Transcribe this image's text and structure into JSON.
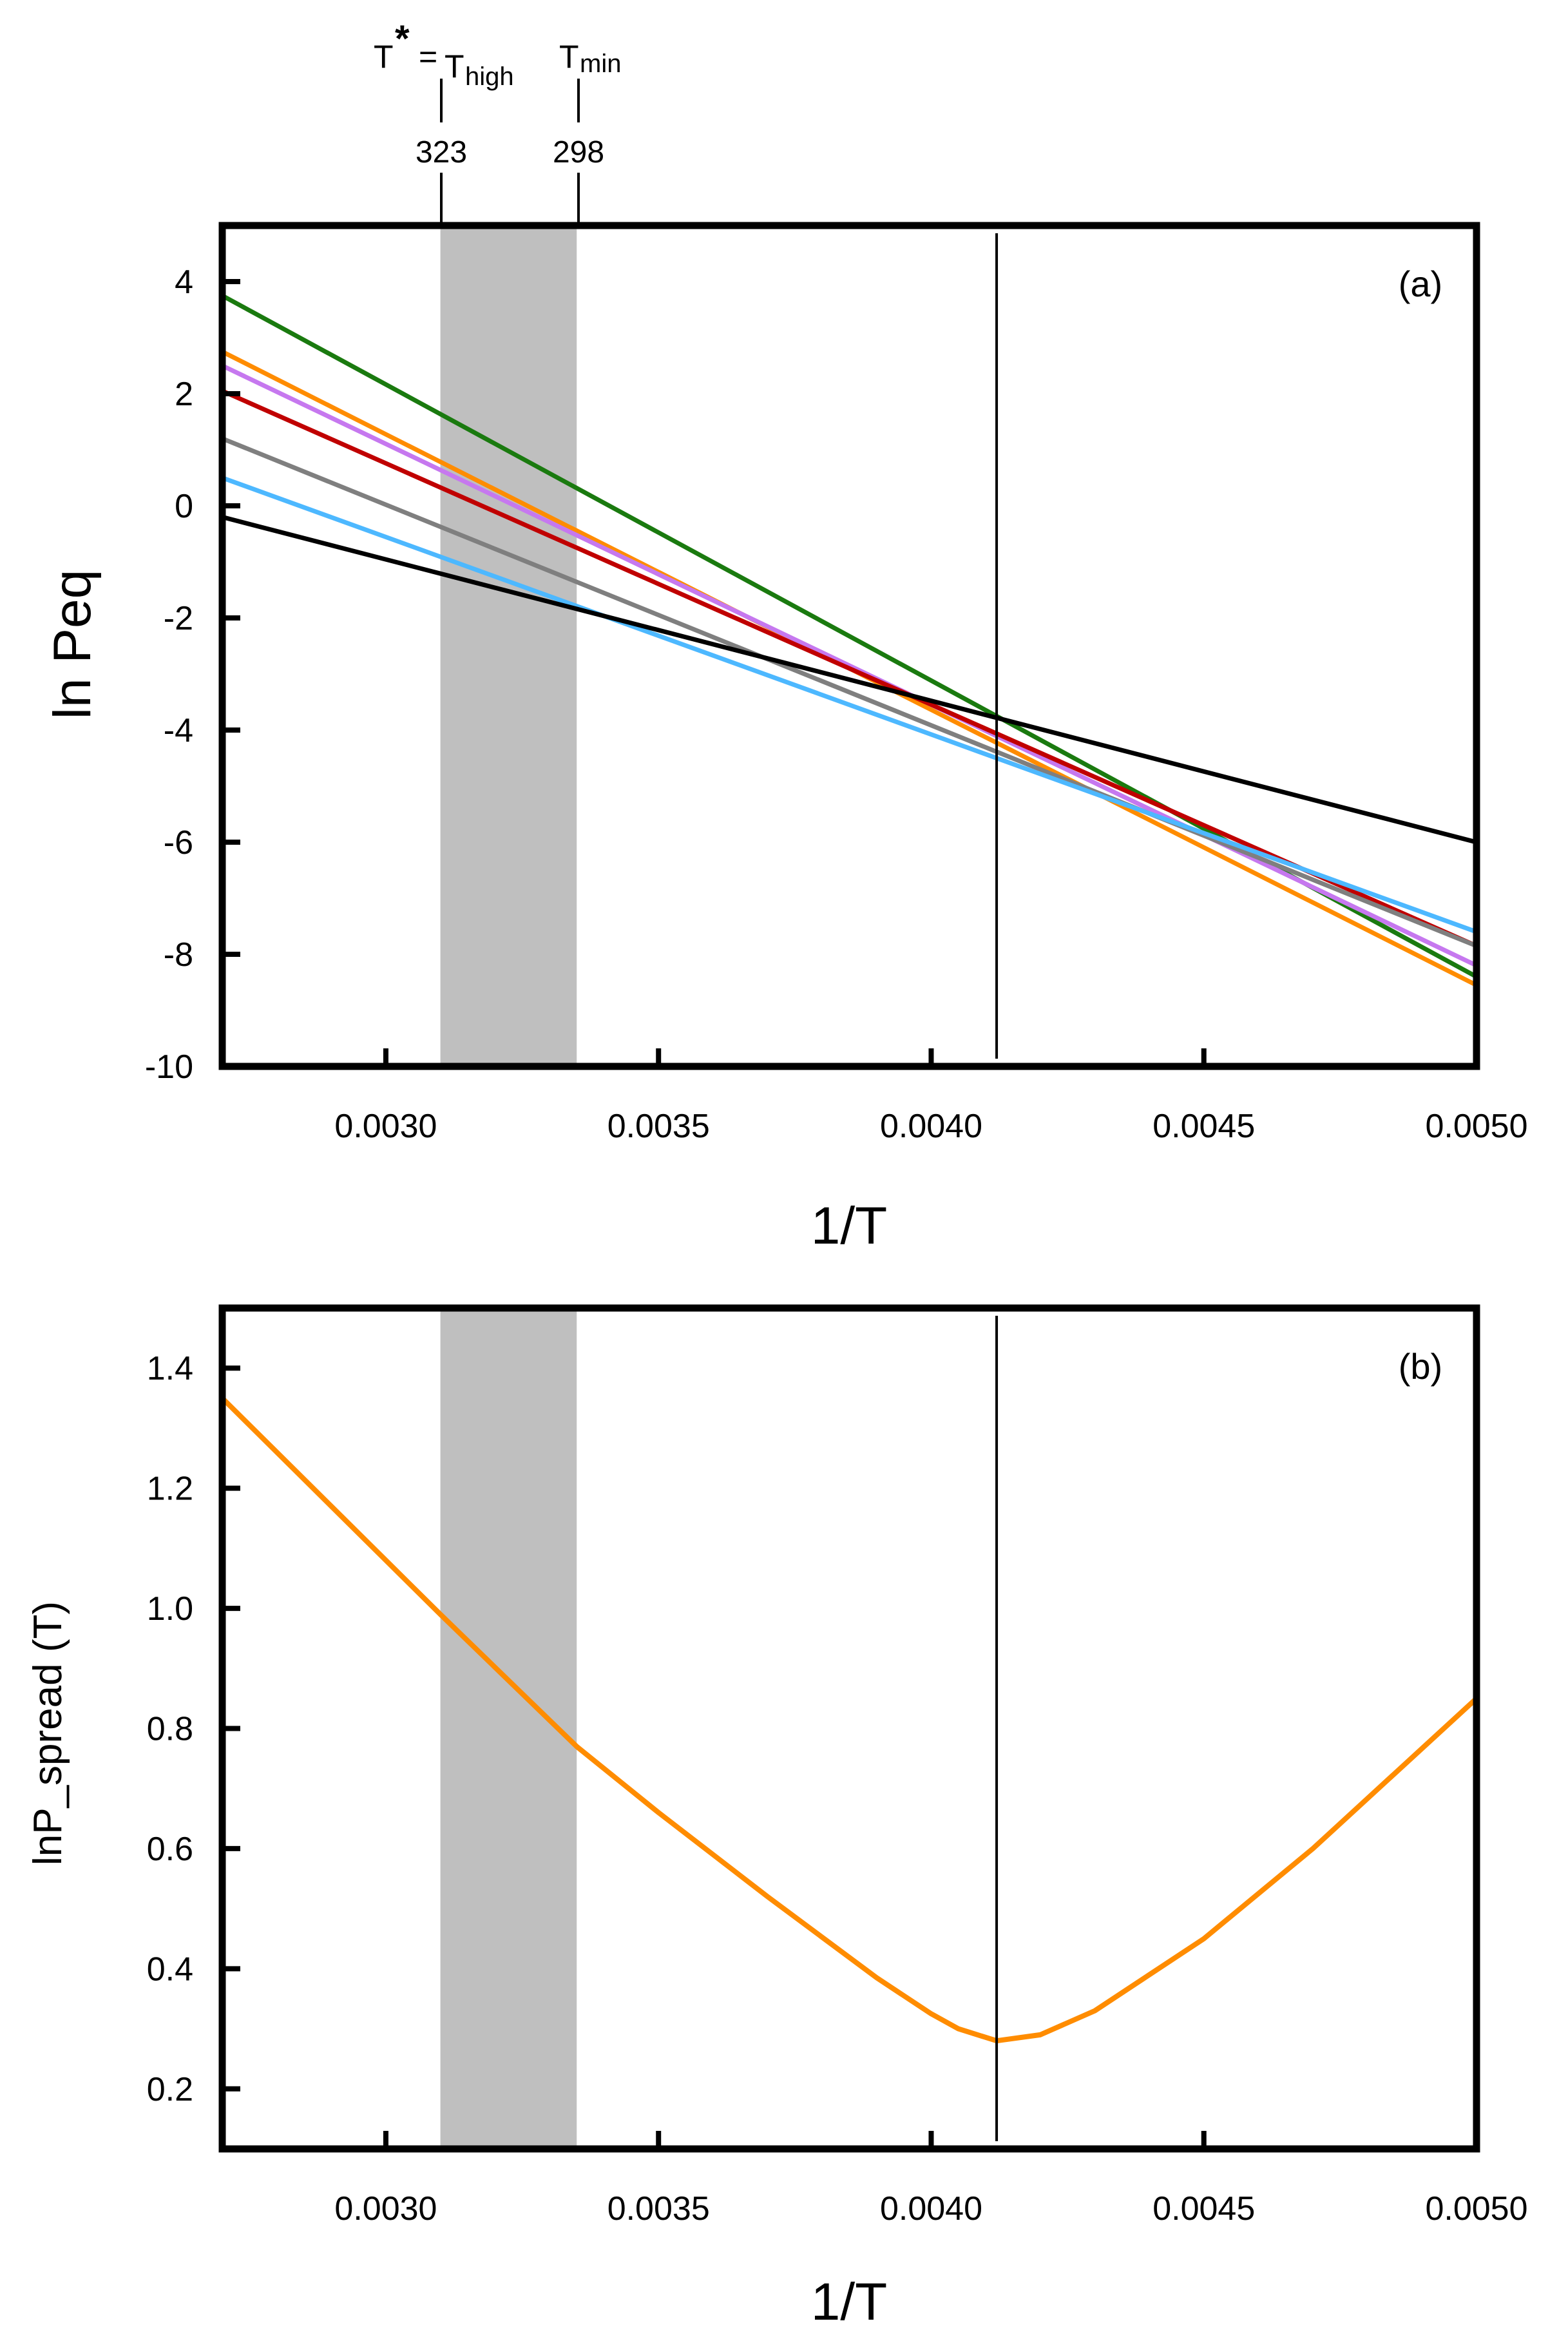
{
  "figure": {
    "annotation": {
      "t_star": "T",
      "star": "*",
      "equals": "=",
      "t_high": "T",
      "high_sub": "high",
      "t_min": "T",
      "min_sub": "min",
      "value_high": "323",
      "value_min": "298"
    },
    "shade_colors": {
      "band": "#bfbfbf"
    }
  },
  "chart_data": [
    {
      "type": "line",
      "panel_tag": "(a)",
      "title": "",
      "xlabel": "1/T",
      "ylabel": "ln Peq",
      "xlim": [
        0.0027,
        0.005
      ],
      "ylim": [
        -10,
        5
      ],
      "x_ticks": [
        0.003,
        0.0035,
        0.004,
        0.0045,
        0.005
      ],
      "x_tick_labels": [
        "0.0030",
        "0.0035",
        "0.0040",
        "0.0045",
        "0.0050"
      ],
      "y_ticks": [
        4,
        2,
        0,
        -2,
        -4,
        -6,
        -8,
        -10
      ],
      "y_tick_labels": [
        "4",
        "2",
        "0",
        "-2",
        "-4",
        "-6",
        "-8",
        "-10"
      ],
      "shaded_band": {
        "x_from": 0.0031,
        "x_to": 0.00335,
        "color": "#bfbfbf"
      },
      "vline_x": 0.00412,
      "series": [
        {
          "name": "green",
          "color": "#1a7a0f",
          "x": [
            0.0027,
            0.005
          ],
          "y": [
            3.75,
            -8.4
          ]
        },
        {
          "name": "orange",
          "color": "#ff8c00",
          "x": [
            0.0027,
            0.005
          ],
          "y": [
            2.75,
            -8.55
          ]
        },
        {
          "name": "purple",
          "color": "#c678ef",
          "x": [
            0.0027,
            0.005
          ],
          "y": [
            2.5,
            -8.2
          ]
        },
        {
          "name": "red",
          "color": "#c00000",
          "x": [
            0.0027,
            0.005
          ],
          "y": [
            2.05,
            -7.85
          ]
        },
        {
          "name": "gray",
          "color": "#7f7f7f",
          "x": [
            0.0027,
            0.005
          ],
          "y": [
            1.2,
            -7.85
          ]
        },
        {
          "name": "blue",
          "color": "#4db8ff",
          "x": [
            0.0027,
            0.005
          ],
          "y": [
            0.5,
            -7.6
          ]
        },
        {
          "name": "black",
          "color": "#000000",
          "x": [
            0.0027,
            0.005
          ],
          "y": [
            -0.2,
            -6.0
          ]
        }
      ]
    },
    {
      "type": "line",
      "panel_tag": "(b)",
      "title": "",
      "xlabel": "1/T",
      "ylabel": "lnP_spread (T)",
      "xlim": [
        0.0027,
        0.005
      ],
      "ylim": [
        0.1,
        1.5
      ],
      "x_ticks": [
        0.003,
        0.0035,
        0.004,
        0.0045,
        0.005
      ],
      "x_tick_labels": [
        "0.0030",
        "0.0035",
        "0.0040",
        "0.0045",
        "0.0050"
      ],
      "y_ticks": [
        1.4,
        1.2,
        1.0,
        0.8,
        0.6,
        0.4,
        0.2
      ],
      "y_tick_labels": [
        "1.4",
        "1.2",
        "1.0",
        "0.8",
        "0.6",
        "0.4",
        "0.2"
      ],
      "shaded_band": {
        "x_from": 0.0031,
        "x_to": 0.00335,
        "color": "#bfbfbf"
      },
      "vline_x": 0.00412,
      "series": [
        {
          "name": "lnP_spread",
          "color": "#ff8c00",
          "x": [
            0.0027,
            0.0029,
            0.0031,
            0.00335,
            0.0035,
            0.0037,
            0.0039,
            0.004,
            0.00405,
            0.00412,
            0.0042,
            0.0043,
            0.0045,
            0.0047,
            0.005
          ],
          "y": [
            1.35,
            1.17,
            0.99,
            0.77,
            0.66,
            0.52,
            0.385,
            0.325,
            0.3,
            0.28,
            0.29,
            0.33,
            0.45,
            0.6,
            0.85
          ]
        }
      ]
    }
  ]
}
